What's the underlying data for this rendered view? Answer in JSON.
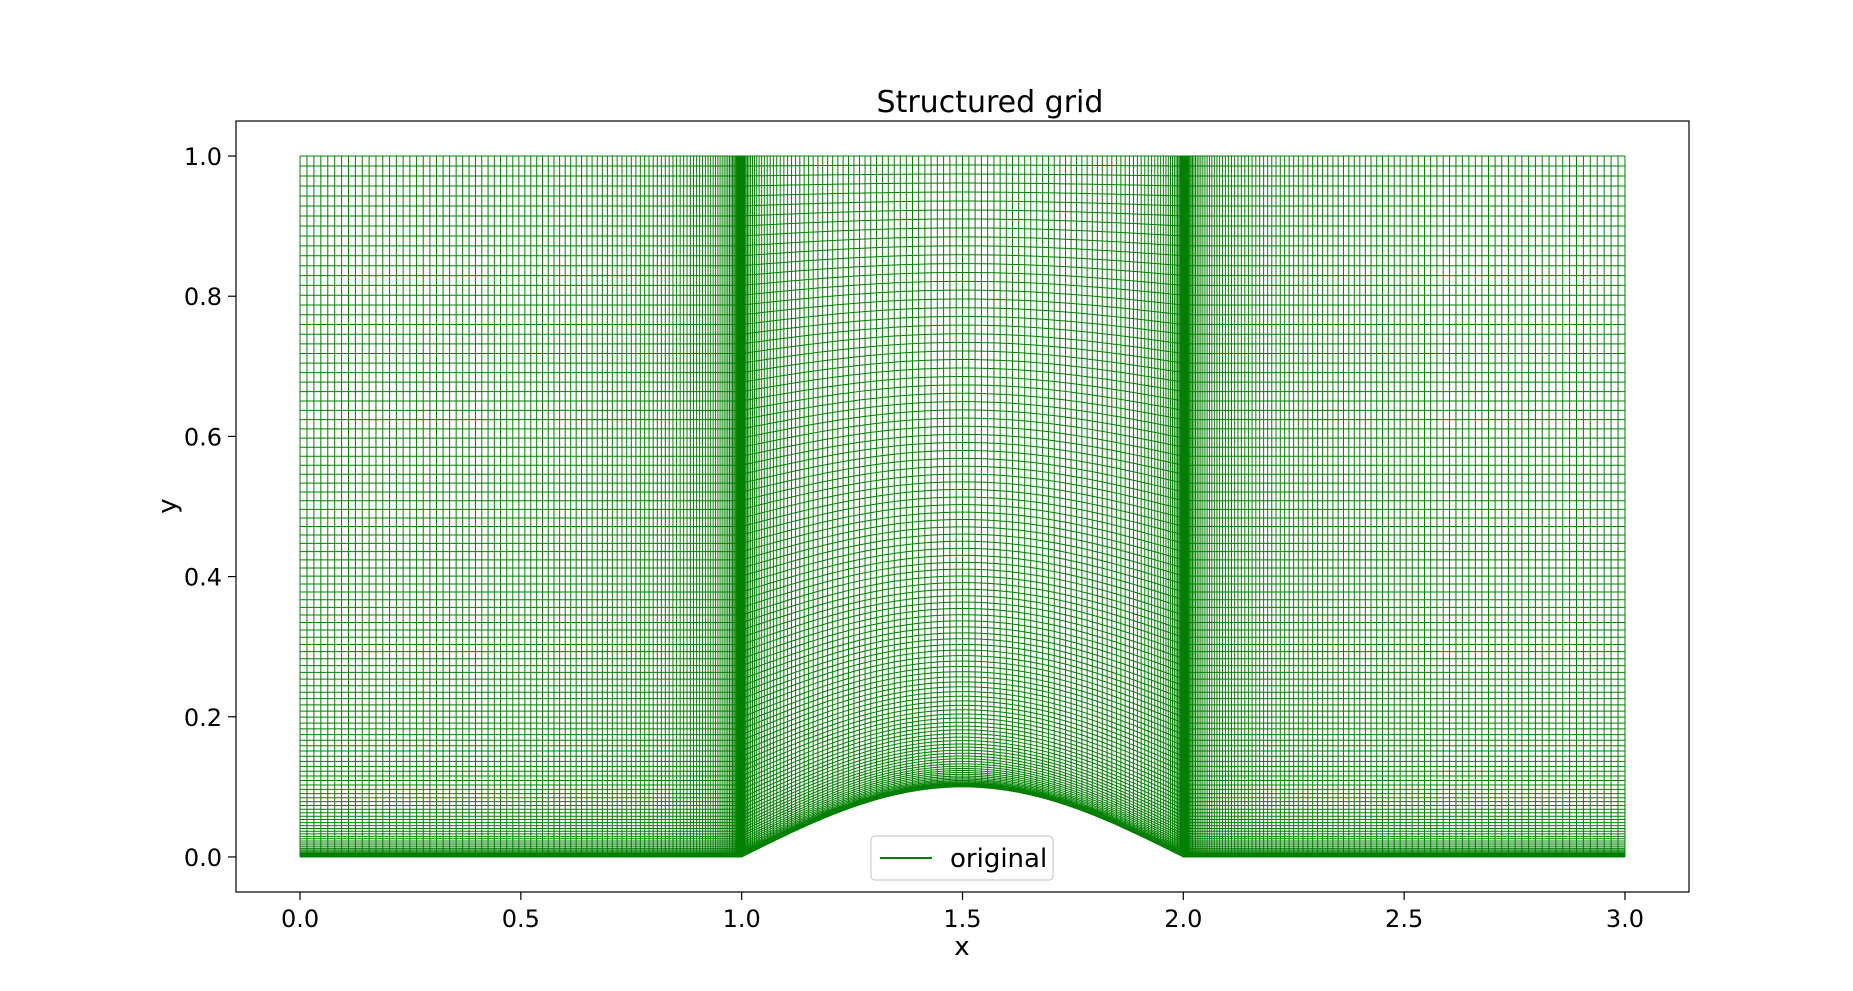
{
  "chart_data": {
    "type": "line",
    "title": "Structured grid",
    "xlabel": "x",
    "ylabel": "y",
    "xlim": [
      -0.145,
      3.145
    ],
    "ylim": [
      -0.05,
      1.05
    ],
    "xticks": [
      0.0,
      0.5,
      1.0,
      1.5,
      2.0,
      2.5,
      3.0
    ],
    "xtick_labels": [
      "0.0",
      "0.5",
      "1.0",
      "1.5",
      "2.0",
      "2.5",
      "3.0"
    ],
    "yticks": [
      0.0,
      0.2,
      0.4,
      0.6,
      0.8,
      1.0
    ],
    "ytick_labels": [
      "0.0",
      "0.2",
      "0.4",
      "0.6",
      "0.8",
      "1.0"
    ],
    "grid": false,
    "legend": {
      "entries": [
        "original"
      ],
      "placement": "lower center"
    },
    "series": [
      {
        "name": "original",
        "color": "#008000",
        "kind": "structured-mesh",
        "domain_x": [
          0.0,
          3.0
        ],
        "domain_y": [
          0.0,
          1.0
        ],
        "bottom_boundary": {
          "flat_segments": [
            [
              0.0,
              1.0
            ],
            [
              2.0,
              3.0
            ]
          ],
          "bump": {
            "x_start": 1.0,
            "x_end": 2.0,
            "peak_x": 1.5,
            "peak_y": 0.1,
            "shape": "sin"
          }
        },
        "x_clusters": [
          1.0,
          2.0
        ],
        "y_cluster": 0.0
      }
    ]
  }
}
